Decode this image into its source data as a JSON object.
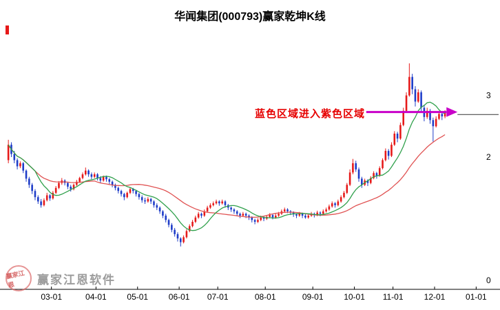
{
  "title": "华闻集团(000793)赢家乾坤K线",
  "watermark": {
    "text": "赢家江恩软件",
    "seal_text": "赢家江恩"
  },
  "colors": {
    "up": "#e61919",
    "down": "#1e3cc8",
    "ma_short": "#2fa04b",
    "ma_long": "#e05252",
    "axis": "#000000"
  },
  "chart_data": {
    "type": "candlestick",
    "title": "华闻集团(000793)赢家乾坤K线",
    "symbol": "000793",
    "name": "华闻集团",
    "legend_position": "none",
    "grid": false,
    "slots": 160,
    "y_range": [
      0,
      4.1
    ],
    "ma_periods": {
      "short": 10,
      "long": 30
    },
    "annotation": {
      "text": "蓝色区域进入紫色区域",
      "color": "#e60000",
      "arrow_color": "#c800c8",
      "arrow_price": 2.73,
      "arrow_from_slot": 121,
      "arrow_to_slot": 148,
      "level_line_color": "#333333",
      "level_price": 2.69
    },
    "x_ticks": [
      {
        "label": "03-01",
        "slot": 15
      },
      {
        "label": "04-01",
        "slot": 30
      },
      {
        "label": "05-01",
        "slot": 44
      },
      {
        "label": "06-01",
        "slot": 58
      },
      {
        "label": "07-01",
        "slot": 71
      },
      {
        "label": "08-01",
        "slot": 87
      },
      {
        "label": "09-01",
        "slot": 103
      },
      {
        "label": "10-01",
        "slot": 117
      },
      {
        "label": "11-01",
        "slot": 130
      },
      {
        "label": "12-01",
        "slot": 144
      },
      {
        "label": "01-01",
        "slot": 158
      }
    ],
    "y_ticks": [
      {
        "label": "3",
        "value": 3
      },
      {
        "label": "2",
        "value": 2
      },
      {
        "label": "0",
        "value": 0
      }
    ],
    "candles": [
      [
        1.95,
        2.28,
        1.9,
        2.2
      ],
      [
        2.2,
        2.24,
        2.0,
        2.05
      ],
      [
        2.05,
        2.1,
        1.9,
        1.95
      ],
      [
        1.95,
        1.98,
        1.8,
        1.85
      ],
      [
        1.85,
        1.93,
        1.82,
        1.9
      ],
      [
        1.9,
        1.92,
        1.74,
        1.78
      ],
      [
        1.78,
        1.8,
        1.6,
        1.65
      ],
      [
        1.65,
        1.68,
        1.5,
        1.55
      ],
      [
        1.55,
        1.58,
        1.4,
        1.45
      ],
      [
        1.45,
        1.48,
        1.3,
        1.35
      ],
      [
        1.35,
        1.38,
        1.24,
        1.28
      ],
      [
        1.28,
        1.32,
        1.18,
        1.22
      ],
      [
        1.22,
        1.33,
        1.2,
        1.3
      ],
      [
        1.3,
        1.42,
        1.28,
        1.38
      ],
      [
        1.38,
        1.4,
        1.29,
        1.33
      ],
      [
        1.33,
        1.45,
        1.31,
        1.42
      ],
      [
        1.42,
        1.53,
        1.4,
        1.5
      ],
      [
        1.5,
        1.61,
        1.48,
        1.58
      ],
      [
        1.58,
        1.66,
        1.55,
        1.62
      ],
      [
        1.62,
        1.64,
        1.54,
        1.58
      ],
      [
        1.58,
        1.6,
        1.48,
        1.52
      ],
      [
        1.52,
        1.55,
        1.44,
        1.48
      ],
      [
        1.48,
        1.57,
        1.46,
        1.55
      ],
      [
        1.55,
        1.63,
        1.53,
        1.6
      ],
      [
        1.6,
        1.68,
        1.58,
        1.66
      ],
      [
        1.66,
        1.75,
        1.64,
        1.72
      ],
      [
        1.72,
        1.83,
        1.7,
        1.78
      ],
      [
        1.78,
        1.8,
        1.68,
        1.72
      ],
      [
        1.72,
        1.75,
        1.64,
        1.68
      ],
      [
        1.68,
        1.75,
        1.66,
        1.72
      ],
      [
        1.72,
        1.74,
        1.62,
        1.66
      ],
      [
        1.66,
        1.69,
        1.58,
        1.62
      ],
      [
        1.62,
        1.7,
        1.6,
        1.68
      ],
      [
        1.68,
        1.7,
        1.6,
        1.64
      ],
      [
        1.64,
        1.66,
        1.56,
        1.6
      ],
      [
        1.6,
        1.62,
        1.51,
        1.55
      ],
      [
        1.55,
        1.57,
        1.46,
        1.5
      ],
      [
        1.5,
        1.52,
        1.41,
        1.45
      ],
      [
        1.45,
        1.47,
        1.36,
        1.4
      ],
      [
        1.4,
        1.42,
        1.3,
        1.35
      ],
      [
        1.35,
        1.44,
        1.33,
        1.42
      ],
      [
        1.42,
        1.51,
        1.4,
        1.48
      ],
      [
        1.48,
        1.5,
        1.41,
        1.45
      ],
      [
        1.45,
        1.47,
        1.36,
        1.4
      ],
      [
        1.4,
        1.42,
        1.31,
        1.35
      ],
      [
        1.35,
        1.38,
        1.26,
        1.3
      ],
      [
        1.3,
        1.34,
        1.24,
        1.28
      ],
      [
        1.28,
        1.35,
        1.26,
        1.32
      ],
      [
        1.32,
        1.34,
        1.24,
        1.28
      ],
      [
        1.28,
        1.3,
        1.18,
        1.22
      ],
      [
        1.22,
        1.25,
        1.14,
        1.18
      ],
      [
        1.18,
        1.2,
        1.08,
        1.12
      ],
      [
        1.12,
        1.14,
        1.01,
        1.05
      ],
      [
        1.05,
        1.08,
        0.94,
        0.98
      ],
      [
        0.98,
        1.0,
        0.86,
        0.9
      ],
      [
        0.9,
        0.93,
        0.78,
        0.82
      ],
      [
        0.82,
        0.85,
        0.71,
        0.75
      ],
      [
        0.75,
        0.78,
        0.63,
        0.68
      ],
      [
        0.68,
        0.7,
        0.55,
        0.62
      ],
      [
        0.62,
        0.73,
        0.6,
        0.7
      ],
      [
        0.7,
        0.83,
        0.68,
        0.8
      ],
      [
        0.8,
        0.91,
        0.78,
        0.88
      ],
      [
        0.88,
        0.98,
        0.86,
        0.95
      ],
      [
        0.95,
        1.05,
        0.93,
        1.02
      ],
      [
        1.02,
        1.11,
        1.0,
        1.08
      ],
      [
        1.08,
        1.1,
        1.01,
        1.05
      ],
      [
        1.05,
        1.15,
        1.03,
        1.12
      ],
      [
        1.12,
        1.21,
        1.1,
        1.18
      ],
      [
        1.18,
        1.25,
        1.16,
        1.22
      ],
      [
        1.22,
        1.28,
        1.2,
        1.25
      ],
      [
        1.25,
        1.31,
        1.23,
        1.28
      ],
      [
        1.28,
        1.3,
        1.21,
        1.25
      ],
      [
        1.25,
        1.31,
        1.23,
        1.28
      ],
      [
        1.28,
        1.3,
        1.18,
        1.22
      ],
      [
        1.22,
        1.24,
        1.14,
        1.18
      ],
      [
        1.18,
        1.2,
        1.11,
        1.15
      ],
      [
        1.15,
        1.17,
        1.08,
        1.12
      ],
      [
        1.12,
        1.14,
        1.04,
        1.08
      ],
      [
        1.08,
        1.1,
        1.01,
        1.05
      ],
      [
        1.05,
        1.11,
        1.03,
        1.08
      ],
      [
        1.08,
        1.1,
        1.01,
        1.05
      ],
      [
        1.05,
        1.07,
        0.98,
        1.02
      ],
      [
        1.02,
        1.04,
        0.94,
        0.98
      ],
      [
        0.98,
        1.0,
        0.91,
        0.95
      ],
      [
        0.95,
        1.01,
        0.93,
        0.98
      ],
      [
        0.98,
        1.05,
        0.96,
        1.02
      ],
      [
        1.02,
        1.04,
        0.96,
        1.0
      ],
      [
        1.0,
        1.06,
        0.98,
        1.03
      ],
      [
        1.03,
        1.09,
        1.01,
        1.06
      ],
      [
        1.06,
        1.08,
        0.99,
        1.02
      ],
      [
        1.02,
        1.08,
        1.0,
        1.05
      ],
      [
        1.05,
        1.11,
        1.03,
        1.08
      ],
      [
        1.08,
        1.15,
        1.06,
        1.12
      ],
      [
        1.12,
        1.18,
        1.1,
        1.15
      ],
      [
        1.15,
        1.17,
        1.09,
        1.12
      ],
      [
        1.12,
        1.14,
        1.06,
        1.1
      ],
      [
        1.1,
        1.12,
        1.03,
        1.07
      ],
      [
        1.07,
        1.09,
        1.01,
        1.05
      ],
      [
        1.05,
        1.11,
        1.03,
        1.08
      ],
      [
        1.08,
        1.1,
        1.01,
        1.05
      ],
      [
        1.05,
        1.08,
        1.0,
        1.02
      ],
      [
        1.02,
        1.08,
        1.0,
        1.05
      ],
      [
        1.05,
        1.11,
        1.03,
        1.08
      ],
      [
        1.08,
        1.1,
        1.02,
        1.06
      ],
      [
        1.06,
        1.13,
        1.04,
        1.1
      ],
      [
        1.1,
        1.12,
        1.04,
        1.08
      ],
      [
        1.08,
        1.15,
        1.06,
        1.12
      ],
      [
        1.12,
        1.18,
        1.1,
        1.15
      ],
      [
        1.15,
        1.23,
        1.13,
        1.2
      ],
      [
        1.2,
        1.28,
        1.18,
        1.25
      ],
      [
        1.25,
        1.27,
        1.18,
        1.22
      ],
      [
        1.22,
        1.31,
        1.2,
        1.28
      ],
      [
        1.28,
        1.38,
        1.26,
        1.35
      ],
      [
        1.35,
        1.45,
        1.33,
        1.42
      ],
      [
        1.42,
        1.58,
        1.4,
        1.55
      ],
      [
        1.55,
        1.8,
        1.53,
        1.75
      ],
      [
        1.75,
        1.97,
        1.72,
        1.9
      ],
      [
        1.9,
        1.94,
        1.76,
        1.8
      ],
      [
        1.8,
        1.83,
        1.6,
        1.65
      ],
      [
        1.65,
        1.68,
        1.5,
        1.55
      ],
      [
        1.55,
        1.65,
        1.53,
        1.62
      ],
      [
        1.62,
        1.64,
        1.53,
        1.58
      ],
      [
        1.58,
        1.69,
        1.56,
        1.66
      ],
      [
        1.66,
        1.77,
        1.64,
        1.74
      ],
      [
        1.74,
        1.76,
        1.65,
        1.7
      ],
      [
        1.7,
        1.85,
        1.68,
        1.82
      ],
      [
        1.82,
        1.98,
        1.8,
        1.95
      ],
      [
        1.95,
        2.14,
        1.93,
        2.1
      ],
      [
        2.1,
        2.13,
        1.96,
        2.02
      ],
      [
        2.02,
        2.24,
        2.0,
        2.2
      ],
      [
        2.2,
        2.42,
        2.18,
        2.38
      ],
      [
        2.38,
        2.41,
        2.24,
        2.3
      ],
      [
        2.3,
        2.56,
        2.28,
        2.52
      ],
      [
        2.52,
        2.8,
        2.5,
        2.75
      ],
      [
        2.75,
        3.05,
        2.72,
        3.0
      ],
      [
        3.0,
        3.52,
        2.98,
        3.3
      ],
      [
        3.3,
        3.35,
        3.02,
        3.1
      ],
      [
        3.1,
        3.15,
        2.82,
        2.9
      ],
      [
        2.9,
        3.1,
        2.88,
        3.05
      ],
      [
        3.05,
        3.08,
        2.72,
        2.8
      ],
      [
        2.8,
        2.85,
        2.58,
        2.65
      ],
      [
        2.65,
        2.8,
        2.62,
        2.75
      ],
      [
        2.75,
        2.78,
        2.54,
        2.6
      ],
      [
        2.6,
        2.64,
        2.25,
        2.5
      ],
      [
        2.5,
        2.66,
        2.48,
        2.62
      ],
      [
        2.62,
        2.74,
        2.6,
        2.7
      ],
      [
        2.7,
        2.73,
        2.6,
        2.66
      ],
      [
        2.66,
        2.76,
        2.63,
        2.72
      ]
    ]
  }
}
